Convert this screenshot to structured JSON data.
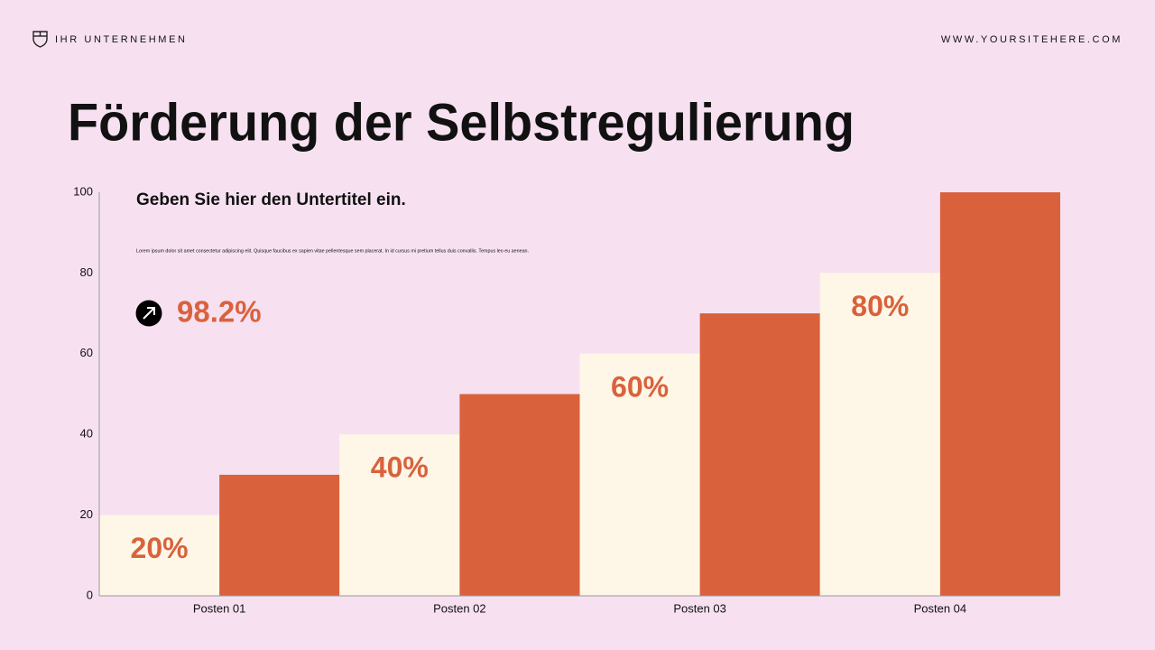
{
  "header": {
    "company": "IHR UNTERNEHMEN",
    "website": "WWW.YOURSITEHERE.COM"
  },
  "chart_data": {
    "type": "bar",
    "title": "Förderung der Selbstregulierung",
    "subtitle": "Geben Sie hier den Untertitel ein.",
    "text": "Lorem ipsum dolor sit amet consectetur adipiscing elit. Quisque faucibus ex sapien vitae pellentesque sem placerat. In id cursus mi pretium tellus duis convallis. Tempus leo eu aenean.",
    "highlight": "98.2%",
    "categories": [
      "Posten 01",
      "Posten 02",
      "Posten 03",
      "Posten 04"
    ],
    "series": [
      {
        "color": "#fef7e7",
        "values": [
          20,
          40,
          60,
          80
        ],
        "value_labels": [
          "20%",
          "40%",
          "60%",
          "80%"
        ]
      },
      {
        "color": "#d9623d",
        "values": [
          30,
          50,
          70,
          100
        ]
      }
    ],
    "ylim": [
      0,
      100
    ],
    "yticks": [
      0,
      20,
      40,
      60,
      80,
      100
    ],
    "grid": false
  }
}
